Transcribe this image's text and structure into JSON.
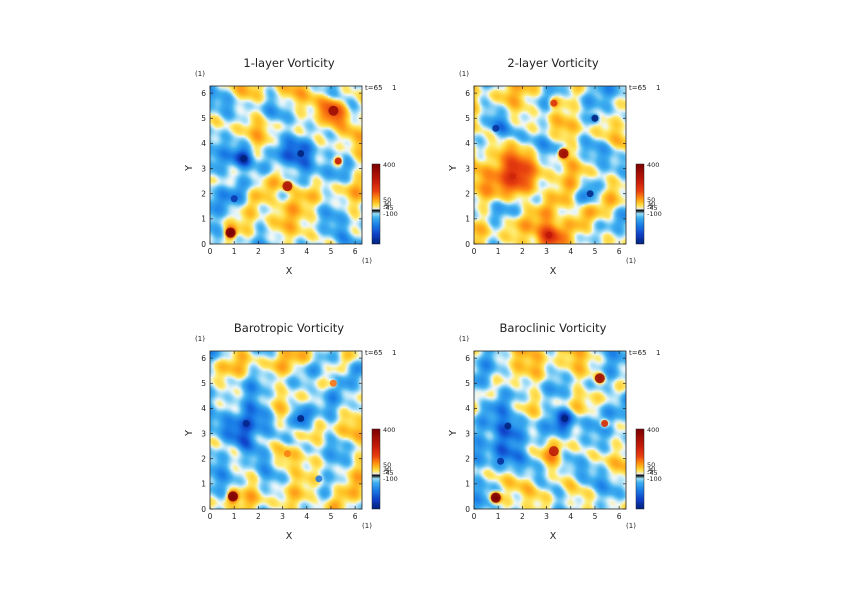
{
  "chart_data": [
    {
      "type": "heatmap",
      "title": "1-layer Vorticity",
      "xlabel": "X",
      "ylabel": "Y",
      "x_unit": "(1)",
      "y_unit": "(1)",
      "time_label": "t=65",
      "time_suffix": "1",
      "xlim": [
        0,
        6.2832
      ],
      "ylim": [
        0,
        6.2832
      ],
      "x_ticks": [
        "0",
        "1",
        "2",
        "3",
        "4",
        "5",
        "6"
      ],
      "y_ticks": [
        "0",
        "1",
        "2",
        "3",
        "4",
        "5",
        "6"
      ],
      "colorbar": {
        "range": [
          -200,
          400
        ],
        "ticks": [
          "400",
          "50",
          "10",
          "-5",
          "-45",
          "-100"
        ]
      },
      "features": [
        {
          "x": 0.85,
          "y": 0.45,
          "value": 400
        },
        {
          "x": 1.4,
          "y": 3.4,
          "value": -180
        },
        {
          "x": 3.75,
          "y": 3.6,
          "value": -200
        },
        {
          "x": 3.2,
          "y": 2.3,
          "value": 280
        },
        {
          "x": 5.1,
          "y": 5.3,
          "value": 300
        },
        {
          "x": 1.0,
          "y": 1.8,
          "value": -140
        },
        {
          "x": 5.3,
          "y": 3.3,
          "value": 250
        }
      ]
    },
    {
      "type": "heatmap",
      "title": "2-layer Vorticity",
      "xlabel": "X",
      "ylabel": "Y",
      "x_unit": "(1)",
      "y_unit": "(1)",
      "time_label": "t=65",
      "time_suffix": "1",
      "xlim": [
        0,
        6.2832
      ],
      "ylim": [
        0,
        6.2832
      ],
      "x_ticks": [
        "0",
        "1",
        "2",
        "3",
        "4",
        "5",
        "6"
      ],
      "y_ticks": [
        "0",
        "1",
        "2",
        "3",
        "4",
        "5",
        "6"
      ],
      "colorbar": {
        "range": [
          -200,
          400
        ],
        "ticks": [
          "400",
          "50",
          "10",
          "-5",
          "-45",
          "-100"
        ]
      },
      "features": [
        {
          "x": 3.7,
          "y": 3.6,
          "value": 300
        },
        {
          "x": 3.1,
          "y": 0.35,
          "value": 250
        },
        {
          "x": 1.6,
          "y": 2.7,
          "value": 220
        },
        {
          "x": 5.0,
          "y": 5.0,
          "value": -190
        },
        {
          "x": 4.8,
          "y": 2.0,
          "value": -160
        },
        {
          "x": 0.9,
          "y": 4.6,
          "value": -150
        },
        {
          "x": 3.3,
          "y": 5.6,
          "value": 200
        }
      ]
    },
    {
      "type": "heatmap",
      "title": "Barotropic Vorticity",
      "xlabel": "X",
      "ylabel": "Y",
      "x_unit": "(1)",
      "y_unit": "(1)",
      "time_label": "t=65",
      "time_suffix": "1",
      "xlim": [
        0,
        6.2832
      ],
      "ylim": [
        0,
        6.2832
      ],
      "x_ticks": [
        "0",
        "1",
        "2",
        "3",
        "4",
        "5",
        "6"
      ],
      "y_ticks": [
        "0",
        "1",
        "2",
        "3",
        "4",
        "5",
        "6"
      ],
      "colorbar": {
        "range": [
          -200,
          400
        ],
        "ticks": [
          "400",
          "50",
          "10",
          "-5",
          "-45",
          "-100"
        ]
      },
      "features": [
        {
          "x": 0.95,
          "y": 0.5,
          "value": 350
        },
        {
          "x": 3.75,
          "y": 3.6,
          "value": -200
        },
        {
          "x": 1.5,
          "y": 3.4,
          "value": -160
        },
        {
          "x": 5.1,
          "y": 5.0,
          "value": 120
        },
        {
          "x": 3.2,
          "y": 2.2,
          "value": 100
        },
        {
          "x": 4.5,
          "y": 1.2,
          "value": -90
        }
      ]
    },
    {
      "type": "heatmap",
      "title": "Baroclinic Vorticity",
      "xlabel": "X",
      "ylabel": "Y",
      "x_unit": "(1)",
      "y_unit": "(1)",
      "time_label": "t=65",
      "time_suffix": "1",
      "xlim": [
        0,
        6.2832
      ],
      "ylim": [
        0,
        6.2832
      ],
      "x_ticks": [
        "0",
        "1",
        "2",
        "3",
        "4",
        "5",
        "6"
      ],
      "y_ticks": [
        "0",
        "1",
        "2",
        "3",
        "4",
        "5",
        "6"
      ],
      "colorbar": {
        "range": [
          -200,
          400
        ],
        "ticks": [
          "400",
          "50",
          "10",
          "-5",
          "-45",
          "-100"
        ]
      },
      "features": [
        {
          "x": 0.9,
          "y": 0.45,
          "value": 400
        },
        {
          "x": 3.75,
          "y": 3.6,
          "value": -200
        },
        {
          "x": 1.4,
          "y": 3.3,
          "value": -170
        },
        {
          "x": 5.2,
          "y": 5.2,
          "value": 300
        },
        {
          "x": 3.3,
          "y": 2.3,
          "value": 260
        },
        {
          "x": 1.1,
          "y": 1.9,
          "value": -150
        },
        {
          "x": 5.4,
          "y": 3.4,
          "value": 230
        }
      ]
    }
  ]
}
